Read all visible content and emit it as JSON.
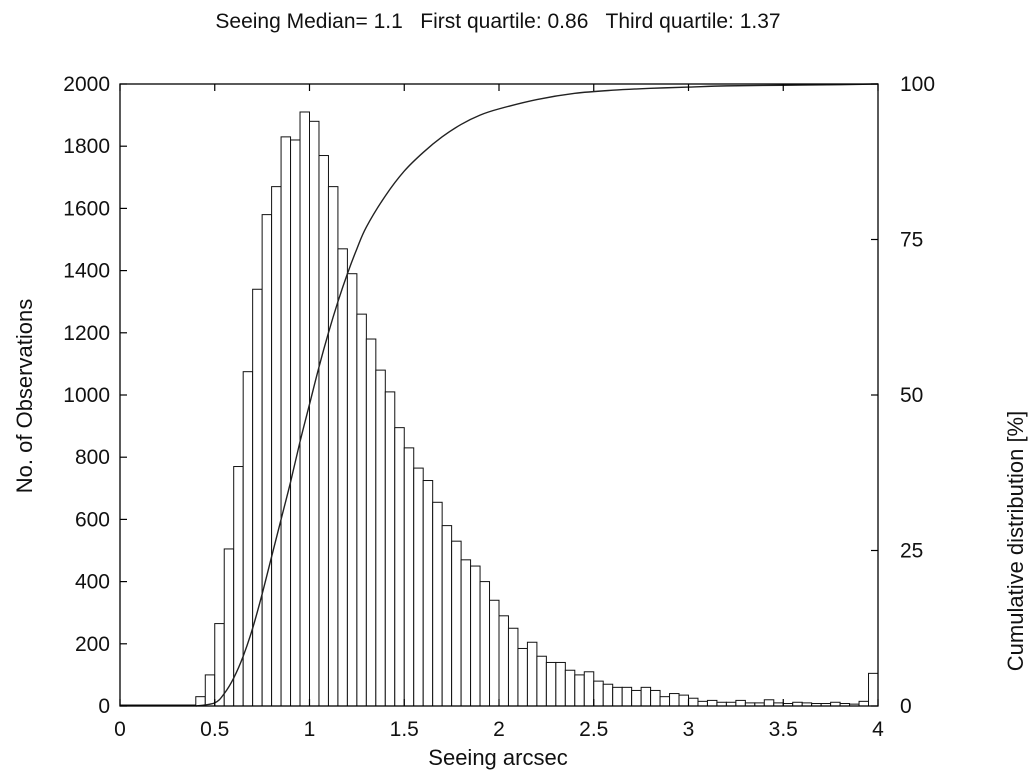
{
  "chart_data": {
    "type": "bar",
    "title": "Seeing Median= 1.1   First quartile: 0.86   Third quartile: 1.37",
    "xlabel": "Seeing arcsec",
    "ylabel": "No. of Observations",
    "y2label": "Cumulative distribution [%]",
    "xlim": [
      0,
      4
    ],
    "ylim": [
      0,
      2000
    ],
    "y2lim": [
      0,
      100
    ],
    "x_ticks": [
      0,
      0.5,
      1,
      1.5,
      2,
      2.5,
      3,
      3.5,
      4
    ],
    "x_tick_labels": [
      "0",
      "0.5",
      "1",
      "1.5",
      "2",
      "2.5",
      "3",
      "3.5",
      "4"
    ],
    "y_ticks": [
      0,
      200,
      400,
      600,
      800,
      1000,
      1200,
      1400,
      1600,
      1800,
      2000
    ],
    "y_tick_labels": [
      "0",
      "200",
      "400",
      "600",
      "800",
      "1000",
      "1200",
      "1400",
      "1600",
      "1800",
      "2000"
    ],
    "y2_ticks": [
      0,
      25,
      50,
      75,
      100
    ],
    "y2_tick_labels": [
      "0",
      "25",
      "50",
      "75",
      "100"
    ],
    "grid": false,
    "bin_width": 0.05,
    "bins": {
      "bin_start": [
        0.4,
        0.45,
        0.5,
        0.55,
        0.6,
        0.65,
        0.7,
        0.75,
        0.8,
        0.85,
        0.9,
        0.95,
        1.0,
        1.05,
        1.1,
        1.15,
        1.2,
        1.25,
        1.3,
        1.35,
        1.4,
        1.45,
        1.5,
        1.55,
        1.6,
        1.65,
        1.7,
        1.75,
        1.8,
        1.85,
        1.9,
        1.95,
        2.0,
        2.05,
        2.1,
        2.15,
        2.2,
        2.25,
        2.3,
        2.35,
        2.4,
        2.45,
        2.5,
        2.55,
        2.6,
        2.65,
        2.7,
        2.75,
        2.8,
        2.85,
        2.9,
        2.95,
        3.0,
        3.05,
        3.1,
        3.15,
        3.2,
        3.25,
        3.3,
        3.35,
        3.4,
        3.45,
        3.5,
        3.55,
        3.6,
        3.65,
        3.7,
        3.75,
        3.8,
        3.85,
        3.9,
        3.95
      ],
      "counts": [
        30,
        100,
        265,
        505,
        770,
        1075,
        1340,
        1580,
        1670,
        1830,
        1820,
        1910,
        1880,
        1770,
        1670,
        1470,
        1390,
        1260,
        1180,
        1080,
        1010,
        895,
        830,
        765,
        725,
        655,
        580,
        530,
        470,
        450,
        400,
        340,
        290,
        250,
        185,
        205,
        160,
        140,
        140,
        115,
        100,
        110,
        80,
        70,
        60,
        60,
        50,
        60,
        50,
        30,
        40,
        35,
        25,
        15,
        18,
        12,
        12,
        18,
        10,
        10,
        20,
        10,
        8,
        12,
        10,
        8,
        8,
        12,
        8,
        6,
        15,
        105
      ]
    },
    "series": [
      {
        "name": "",
        "type": "line",
        "axis": "y2",
        "x": [
          0.4,
          0.5,
          0.55,
          0.6,
          0.65,
          0.7,
          0.75,
          0.8,
          0.85,
          0.9,
          0.95,
          1.0,
          1.05,
          1.1,
          1.15,
          1.2,
          1.25,
          1.3,
          1.4,
          1.5,
          1.6,
          1.7,
          1.8,
          1.9,
          2.0,
          2.2,
          2.4,
          2.6,
          2.8,
          3.0,
          3.2,
          3.5,
          3.8,
          4.0
        ],
        "y": [
          0,
          0.5,
          2,
          4.5,
          8,
          12.5,
          18,
          24,
          30,
          36,
          42.5,
          48.5,
          54.5,
          60,
          65,
          69.5,
          73.5,
          77,
          82,
          86,
          89,
          91.5,
          93.5,
          95,
          96,
          97.5,
          98.5,
          99,
          99.3,
          99.5,
          99.7,
          99.8,
          99.9,
          100
        ]
      }
    ]
  }
}
